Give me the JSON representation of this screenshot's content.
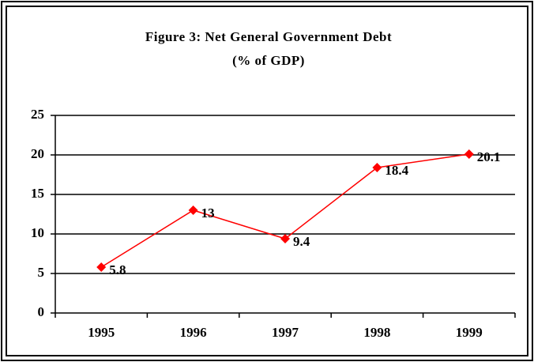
{
  "chart_data": {
    "type": "line",
    "title": [
      "Figure 3:  Net General Government Debt",
      "(% of GDP)"
    ],
    "categories": [
      "1995",
      "1996",
      "1997",
      "1998",
      "1999"
    ],
    "values": [
      5.8,
      13,
      9.4,
      18.4,
      20.1
    ],
    "color": "#ff0000",
    "ylim": [
      0,
      25
    ],
    "yticks": [
      0,
      5,
      10,
      15,
      20,
      25
    ],
    "grid": true
  }
}
